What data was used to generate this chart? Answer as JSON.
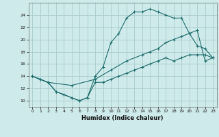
{
  "xlabel": "Humidex (Indice chaleur)",
  "background_color": "#ceeaea",
  "grid_color": "#aacccc",
  "line_color": "#1e6b6b",
  "xlim": [
    -0.5,
    23.5
  ],
  "ylim": [
    9.0,
    26.0
  ],
  "xticks": [
    0,
    1,
    2,
    3,
    4,
    5,
    6,
    7,
    8,
    9,
    10,
    11,
    12,
    13,
    14,
    15,
    16,
    17,
    18,
    19,
    20,
    21,
    22,
    23
  ],
  "yticks": [
    10,
    12,
    14,
    16,
    18,
    20,
    22,
    24
  ],
  "line1_x": [
    0,
    1,
    2,
    3,
    4,
    5,
    6,
    7,
    8,
    9,
    10,
    11,
    12,
    13,
    14,
    15,
    16,
    17,
    18,
    19,
    20,
    21,
    22,
    23
  ],
  "line1_y": [
    14.0,
    13.5,
    13.0,
    11.5,
    11.0,
    10.5,
    10.0,
    10.5,
    14.0,
    15.5,
    19.5,
    21.0,
    23.5,
    24.5,
    24.5,
    25.0,
    24.5,
    24.0,
    23.5,
    23.5,
    21.0,
    19.0,
    18.5,
    17.0
  ],
  "line2_x": [
    0,
    2,
    5,
    8,
    10,
    12,
    14,
    15,
    16,
    17,
    18,
    19,
    20,
    21,
    22,
    23
  ],
  "line2_y": [
    14.0,
    13.0,
    12.5,
    13.5,
    15.0,
    16.5,
    17.5,
    18.0,
    18.5,
    19.5,
    20.0,
    20.5,
    21.0,
    21.5,
    16.5,
    17.0
  ],
  "line3_x": [
    0,
    1,
    2,
    3,
    4,
    5,
    6,
    7,
    8,
    9,
    10,
    11,
    12,
    13,
    14,
    15,
    16,
    17,
    18,
    19,
    20,
    21,
    22,
    23
  ],
  "line3_y": [
    14.0,
    13.5,
    13.0,
    11.5,
    11.0,
    10.5,
    10.0,
    10.5,
    13.0,
    13.0,
    13.5,
    14.0,
    14.5,
    15.0,
    15.5,
    16.0,
    16.5,
    17.0,
    16.5,
    17.0,
    17.5,
    17.5,
    17.5,
    17.0
  ]
}
